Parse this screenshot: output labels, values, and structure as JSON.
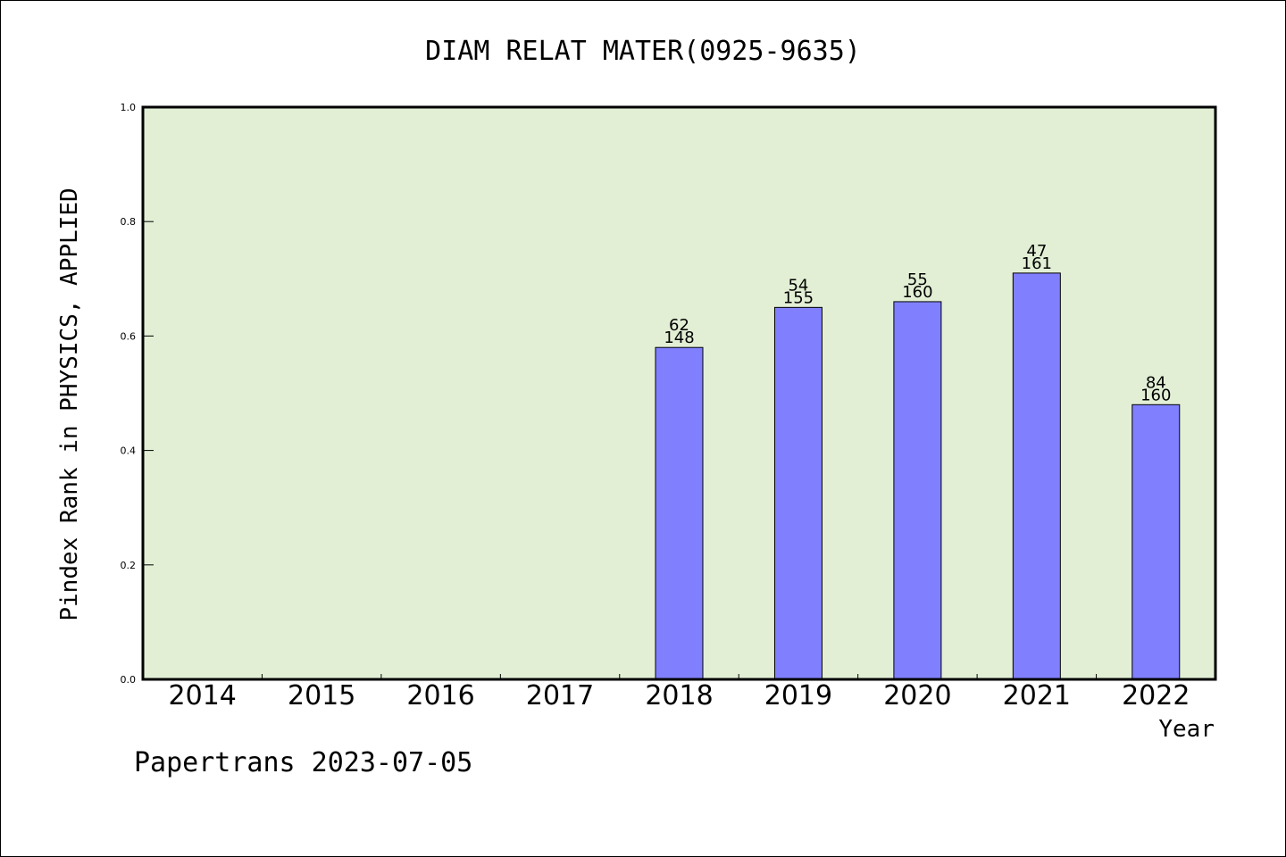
{
  "chart_data": {
    "type": "bar",
    "title": "DIAM RELAT MATER(0925-9635)",
    "xlabel": "Year",
    "ylabel": "Pindex Rank in PHYSICS, APPLIED",
    "ylim": [
      0,
      1.0
    ],
    "yticks": [
      "0.0",
      "0.2",
      "0.4",
      "0.6",
      "0.8",
      "1.0"
    ],
    "ytick_values": [
      0,
      0.2,
      0.4,
      0.6,
      0.8,
      1.0
    ],
    "categories": [
      "2014",
      "2015",
      "2016",
      "2017",
      "2018",
      "2019",
      "2020",
      "2021",
      "2022"
    ],
    "values": [
      null,
      null,
      null,
      null,
      0.58,
      0.65,
      0.66,
      0.71,
      0.48
    ],
    "rank_labels": [
      "",
      "",
      "",
      "",
      "62",
      "54",
      "55",
      "47",
      "84"
    ],
    "total_labels": [
      "",
      "",
      "",
      "",
      "148",
      "155",
      "160",
      "161",
      "160"
    ],
    "bar_color": "#8080ff",
    "plot_background": "#e2efd5",
    "grid": false,
    "legend": "none"
  },
  "footer": {
    "credit": "Papertrans 2023-07-05"
  }
}
